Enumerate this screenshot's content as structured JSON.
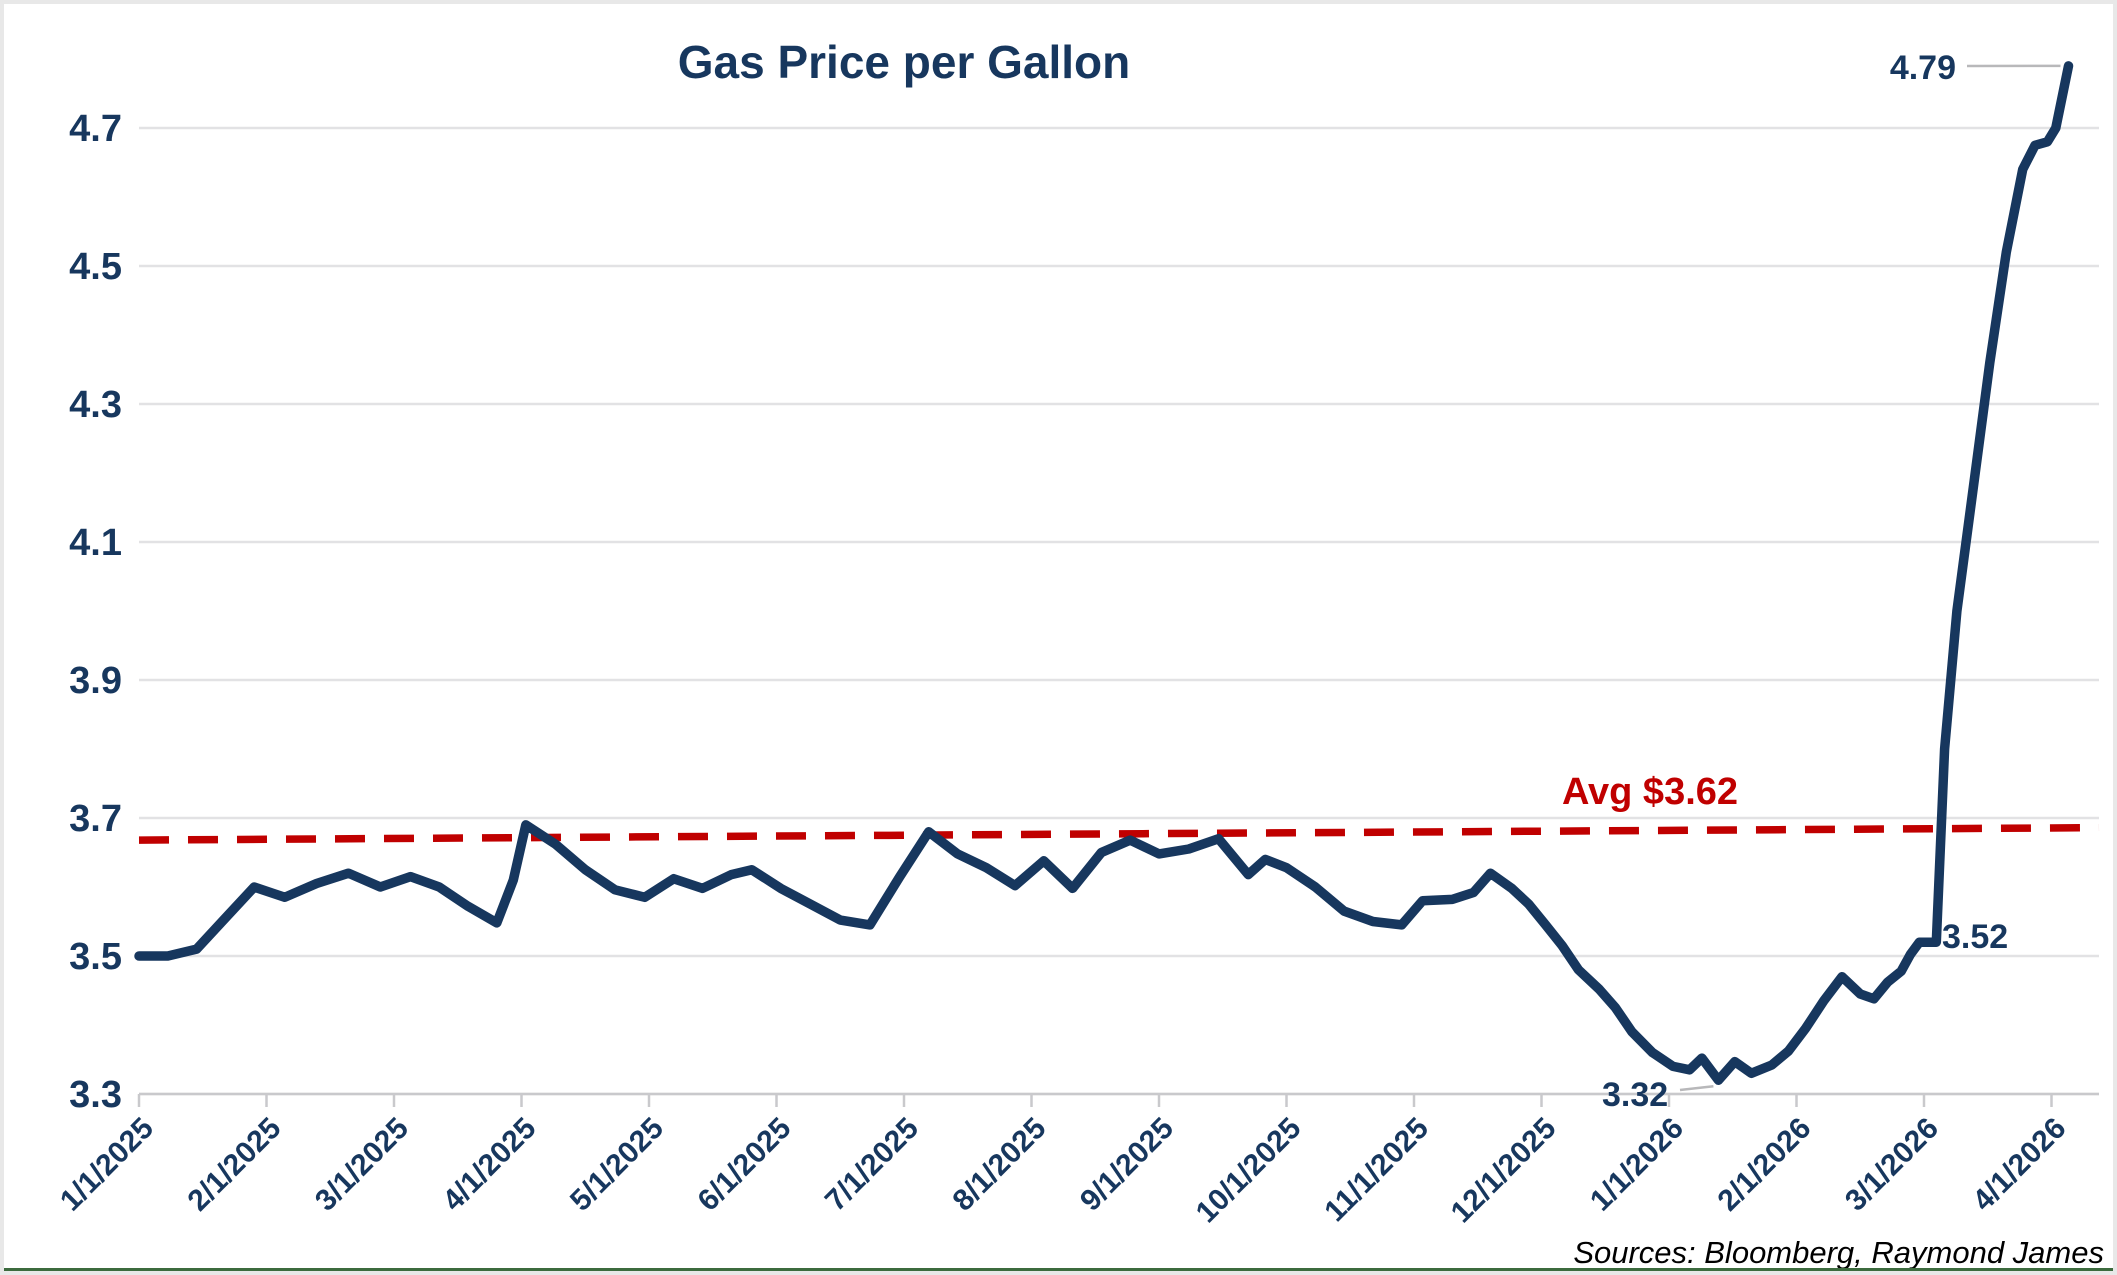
{
  "title": "Gas Price per Gallon",
  "source": "Sources: Bloomberg, Raymond James",
  "colors": {
    "line": "#17375e",
    "average_line": "#c00000",
    "gridline": "#e2e2e4",
    "axis_line": "#c9c9cc",
    "leader_line": "#b8b8ba",
    "navy_text": "#17375e",
    "source_text": "#000000",
    "window_border": "#e8e8e8",
    "bottom_bar_green": "#3c6b3e"
  },
  "chart_data": {
    "type": "line",
    "title": "Gas Price per Gallon",
    "ylabel": "",
    "xlabel": "",
    "ylim": [
      3.3,
      4.8
    ],
    "y_ticks": [
      3.3,
      3.5,
      3.7,
      3.9,
      4.1,
      4.3,
      4.5,
      4.7
    ],
    "grid": "horizontal",
    "legend": "none",
    "x_tick_labels": [
      "1/1/2025",
      "2/1/2025",
      "3/1/2025",
      "4/1/2025",
      "5/1/2025",
      "6/1/2025",
      "7/1/2025",
      "8/1/2025",
      "9/1/2025",
      "10/1/2025",
      "11/1/2025",
      "12/1/2025",
      "1/1/2026",
      "2/1/2026",
      "3/1/2026",
      "4/1/2026"
    ],
    "average_line": {
      "label": "Avg $3.62",
      "value": 3.62,
      "style": "dashed",
      "color": "#c00000",
      "drawn_left_value": 3.668,
      "drawn_right_value": 3.686
    },
    "annotations": [
      {
        "text": "4.79",
        "meaning": "final value"
      },
      {
        "text": "3.52",
        "meaning": "value before spike"
      },
      {
        "text": "3.32",
        "meaning": "minimum value"
      }
    ],
    "series": [
      {
        "name": "Gas Price per Gallon",
        "color": "#17375e",
        "points": [
          [
            "1/1/2025",
            3.5
          ],
          [
            "1/8/2025",
            3.5
          ],
          [
            "1/15/2025",
            3.51
          ],
          [
            "1/22/2025",
            3.555
          ],
          [
            "1/29/2025",
            3.6
          ],
          [
            "2/5/2025",
            3.585
          ],
          [
            "2/12/2025",
            3.605
          ],
          [
            "2/19/2025",
            3.62
          ],
          [
            "2/26/2025",
            3.6
          ],
          [
            "3/5/2025",
            3.615
          ],
          [
            "3/12/2025",
            3.6
          ],
          [
            "3/19/2025",
            3.572
          ],
          [
            "3/26/2025",
            3.548
          ],
          [
            "3/30/2025",
            3.61
          ],
          [
            "4/2/2025",
            3.69
          ],
          [
            "4/9/2025",
            3.662
          ],
          [
            "4/16/2025",
            3.625
          ],
          [
            "4/23/2025",
            3.596
          ],
          [
            "4/30/2025",
            3.585
          ],
          [
            "5/7/2025",
            3.612
          ],
          [
            "5/14/2025",
            3.598
          ],
          [
            "5/21/2025",
            3.618
          ],
          [
            "5/26/2025",
            3.625
          ],
          [
            "6/2/2025",
            3.598
          ],
          [
            "6/9/2025",
            3.575
          ],
          [
            "6/16/2025",
            3.552
          ],
          [
            "6/23/2025",
            3.545
          ],
          [
            "6/30/2025",
            3.615
          ],
          [
            "7/7/2025",
            3.68
          ],
          [
            "7/14/2025",
            3.648
          ],
          [
            "7/21/2025",
            3.628
          ],
          [
            "7/28/2025",
            3.602
          ],
          [
            "8/4/2025",
            3.638
          ],
          [
            "8/11/2025",
            3.598
          ],
          [
            "8/18/2025",
            3.65
          ],
          [
            "8/25/2025",
            3.668
          ],
          [
            "9/1/2025",
            3.648
          ],
          [
            "9/8/2025",
            3.655
          ],
          [
            "9/15/2025",
            3.67
          ],
          [
            "9/22/2025",
            3.618
          ],
          [
            "9/26/2025",
            3.64
          ],
          [
            "10/1/2025",
            3.628
          ],
          [
            "10/8/2025",
            3.6
          ],
          [
            "10/15/2025",
            3.565
          ],
          [
            "10/22/2025",
            3.55
          ],
          [
            "10/29/2025",
            3.545
          ],
          [
            "11/3/2025",
            3.58
          ],
          [
            "11/10/2025",
            3.582
          ],
          [
            "11/15/2025",
            3.592
          ],
          [
            "11/19/2025",
            3.62
          ],
          [
            "11/24/2025",
            3.598
          ],
          [
            "11/28/2025",
            3.575
          ],
          [
            "12/2/2025",
            3.545
          ],
          [
            "12/6/2025",
            3.515
          ],
          [
            "12/10/2025",
            3.48
          ],
          [
            "12/15/2025",
            3.452
          ],
          [
            "12/19/2025",
            3.425
          ],
          [
            "12/23/2025",
            3.39
          ],
          [
            "12/28/2025",
            3.36
          ],
          [
            "1/2/2026",
            3.34
          ],
          [
            "1/6/2026",
            3.335
          ],
          [
            "1/9/2026",
            3.352
          ],
          [
            "1/13/2026",
            3.32
          ],
          [
            "1/17/2026",
            3.347
          ],
          [
            "1/21/2026",
            3.33
          ],
          [
            "1/26/2026",
            3.342
          ],
          [
            "1/30/2026",
            3.362
          ],
          [
            "2/3/2026",
            3.395
          ],
          [
            "2/7/2026",
            3.435
          ],
          [
            "2/11/2026",
            3.47
          ],
          [
            "2/15/2026",
            3.445
          ],
          [
            "2/18/2026",
            3.438
          ],
          [
            "2/21/2026",
            3.462
          ],
          [
            "2/24/2026",
            3.478
          ],
          [
            "2/26/2026",
            3.502
          ],
          [
            "2/28/2026",
            3.52
          ],
          [
            "3/4/2026",
            3.52
          ],
          [
            "3/6/2026",
            3.8
          ],
          [
            "3/9/2026",
            4.0
          ],
          [
            "3/13/2026",
            4.18
          ],
          [
            "3/17/2026",
            4.36
          ],
          [
            "3/21/2026",
            4.52
          ],
          [
            "3/25/2026",
            4.64
          ],
          [
            "3/28/2026",
            4.675
          ],
          [
            "3/31/2026",
            4.68
          ],
          [
            "4/2/2026",
            4.7
          ],
          [
            "4/5/2026",
            4.79
          ]
        ]
      }
    ]
  }
}
